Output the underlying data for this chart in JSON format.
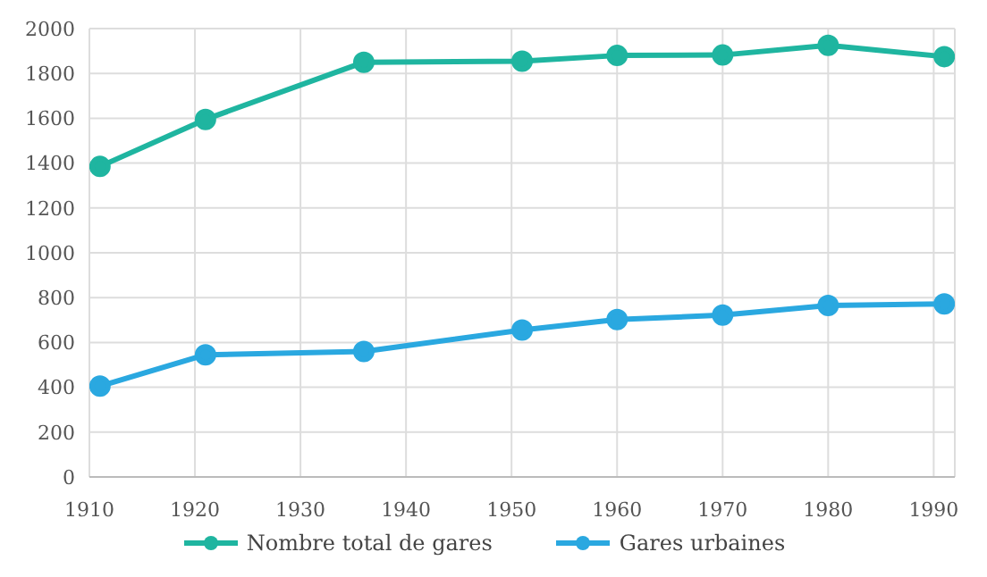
{
  "chart_data": {
    "type": "line",
    "x": [
      1911,
      1921,
      1936,
      1951,
      1960,
      1970,
      1980,
      1991
    ],
    "series": [
      {
        "name": "Nombre total de gares",
        "color": "#1fb5a0",
        "values": [
          1385,
          1595,
          1850,
          1855,
          1880,
          1882,
          1925,
          1875
        ]
      },
      {
        "name": "Gares urbaines",
        "color": "#2aa8e0",
        "values": [
          405,
          545,
          560,
          655,
          702,
          722,
          765,
          772
        ]
      }
    ],
    "xlim": [
      1910,
      1992
    ],
    "xticks": [
      1910,
      1920,
      1930,
      1940,
      1950,
      1960,
      1970,
      1980,
      1990
    ],
    "ylim": [
      0,
      2000
    ],
    "yticks": [
      0,
      200,
      400,
      600,
      800,
      1000,
      1200,
      1400,
      1600,
      1800,
      2000
    ],
    "grid": true,
    "legend": "bottom",
    "marker": "circle",
    "line_style": "solid"
  }
}
